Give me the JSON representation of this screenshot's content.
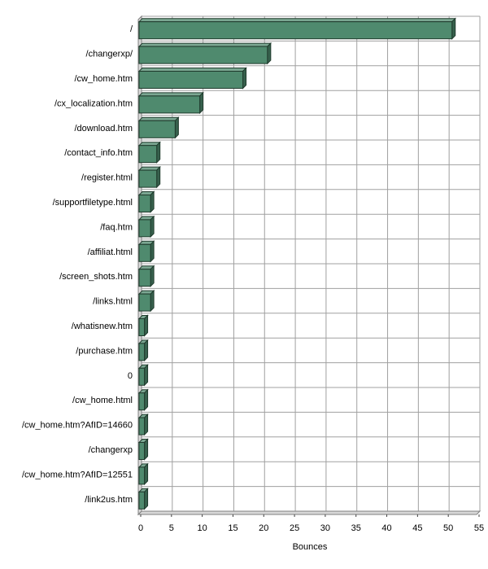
{
  "chart_data": {
    "type": "bar",
    "orientation": "horizontal",
    "style": "3d",
    "title": "",
    "xlabel": "Bounces",
    "ylabel": "",
    "xlim": [
      0,
      55
    ],
    "x_ticks": [
      0,
      5,
      10,
      15,
      20,
      25,
      30,
      35,
      40,
      45,
      50,
      55
    ],
    "grid": true,
    "legend": "none",
    "bar_color": "#4f8a6e",
    "categories": [
      "/",
      "/changerxp/",
      "/cw_home.htm",
      "/cx_localization.htm",
      "/download.htm",
      "/contact_info.htm",
      "/register.html",
      "/supportfiletype.html",
      "/faq.htm",
      "/affiliat.html",
      "/screen_shots.htm",
      "/links.html",
      "/whatisnew.htm",
      "/purchase.htm",
      "0",
      "/cw_home.html",
      "/cw_home.htm?AfID=14660",
      "/changerxp",
      "/cw_home.htm?AfID=12551",
      "/link2us.htm"
    ],
    "values": [
      51,
      21,
      17,
      10,
      6,
      3,
      3,
      2,
      2,
      2,
      2,
      2,
      1,
      1,
      1,
      1,
      1,
      1,
      1,
      1
    ]
  }
}
